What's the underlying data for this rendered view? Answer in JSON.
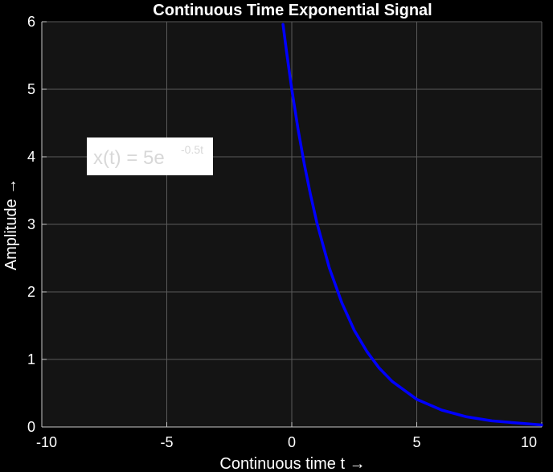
{
  "colors": {
    "figure_bg": "#000000",
    "axes_bg": "#141414",
    "grid": "#5a5a5a",
    "axis_line": "#c8c8c8",
    "text": "#ffffff",
    "curve": "#0000ff",
    "annotation_bg": "#ffffff",
    "annotation_text": "#d8d8d8"
  },
  "chart_data": {
    "type": "line",
    "title": "Continuous Time Exponential Signal",
    "xlabel": "Continuous time t →",
    "ylabel": "Amplitude →",
    "xlim": [
      -10,
      10
    ],
    "ylim": [
      0,
      6
    ],
    "xticks": [
      -10,
      -5,
      0,
      5,
      10
    ],
    "yticks": [
      0,
      1,
      2,
      3,
      4,
      5,
      6
    ],
    "xtick_labels": [
      "-10",
      "-5",
      "0",
      "5",
      "10"
    ],
    "ytick_labels": [
      "0",
      "1",
      "2",
      "3",
      "4",
      "5",
      "6"
    ],
    "grid": true,
    "series": [
      {
        "expression": "5e^(-0.5t)",
        "amplitude": 5,
        "decay": -0.5,
        "x": [
          -0.35,
          -0.2,
          0,
          0.25,
          0.5,
          0.75,
          1,
          1.5,
          2,
          2.5,
          3,
          3.5,
          4,
          5,
          6,
          7,
          8,
          9,
          10
        ],
        "y": [
          5.96,
          5.53,
          5.0,
          4.41,
          3.89,
          3.44,
          3.03,
          2.36,
          1.84,
          1.43,
          1.12,
          0.87,
          0.68,
          0.41,
          0.25,
          0.15,
          0.09,
          0.06,
          0.03
        ]
      }
    ],
    "annotation": {
      "main": "x(t)  =  5e",
      "superscript": "-0.5t",
      "anchor": [
        -8.2,
        4.0
      ]
    }
  }
}
